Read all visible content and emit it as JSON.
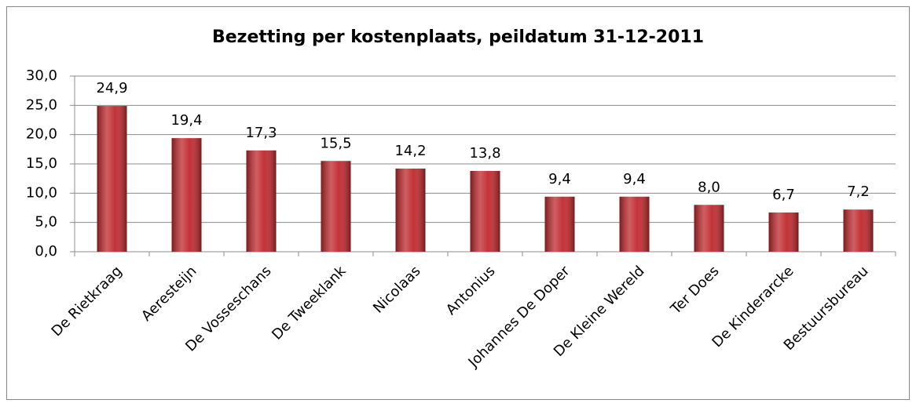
{
  "chart_data": {
    "type": "bar",
    "title": "Bezetting per kostenplaats, peildatum 31-12-2011",
    "categories": [
      "De Rietkraag",
      "Aeresteijn",
      "De Vosseschans",
      "De Tweeklank",
      "Nicolaas",
      "Antonius",
      "Johannes De Doper",
      "De Kleine Wereld",
      "Ter Does",
      "De Kinderarcke",
      "Bestuursbureau"
    ],
    "values": [
      24.9,
      19.4,
      17.3,
      15.5,
      14.2,
      13.8,
      9.4,
      9.4,
      8.0,
      6.7,
      7.2
    ],
    "value_labels": [
      "24,9",
      "19,4",
      "17,3",
      "15,5",
      "14,2",
      "13,8",
      "9,4",
      "9,4",
      "8,0",
      "6,7",
      "7,2"
    ],
    "color": "#c0282d",
    "ylim": [
      0,
      30
    ],
    "yticks": [
      {
        "value": 0,
        "label": "0,0"
      },
      {
        "value": 5,
        "label": "5,0"
      },
      {
        "value": 10,
        "label": "10,0"
      },
      {
        "value": 15,
        "label": "15,0"
      },
      {
        "value": 20,
        "label": "20,0"
      },
      {
        "value": 25,
        "label": "25,0"
      },
      {
        "value": 30,
        "label": "30,0"
      }
    ],
    "grid": true
  }
}
